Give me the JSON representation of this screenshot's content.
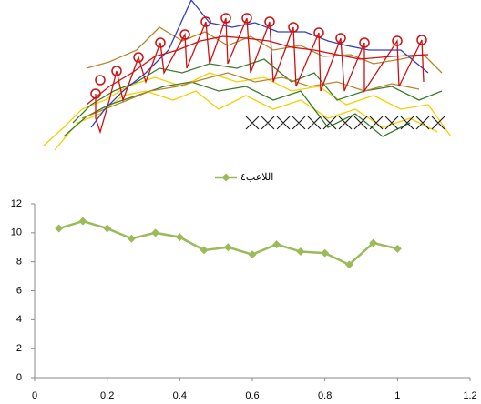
{
  "chart_data": {
    "type": "line",
    "x": [
      0.067,
      0.133,
      0.2,
      0.267,
      0.333,
      0.4,
      0.467,
      0.533,
      0.6,
      0.667,
      0.733,
      0.8,
      0.867,
      0.933,
      1.0
    ],
    "series": [
      {
        "name": "اللاعب٤",
        "color": "#9bbb59",
        "values": [
          10.3,
          10.8,
          10.3,
          9.6,
          10.0,
          9.7,
          8.8,
          9.0,
          8.5,
          9.2,
          8.7,
          8.6,
          7.8,
          9.3,
          8.9
        ]
      }
    ],
    "xlim": [
      0,
      1.2
    ],
    "xticks": [
      0,
      0.2,
      0.4,
      0.6,
      0.8,
      1,
      1.2
    ],
    "ylim": [
      0,
      12
    ],
    "yticks": [
      0,
      2,
      4,
      6,
      8,
      10,
      12
    ],
    "grid": false,
    "legend": "top"
  }
}
